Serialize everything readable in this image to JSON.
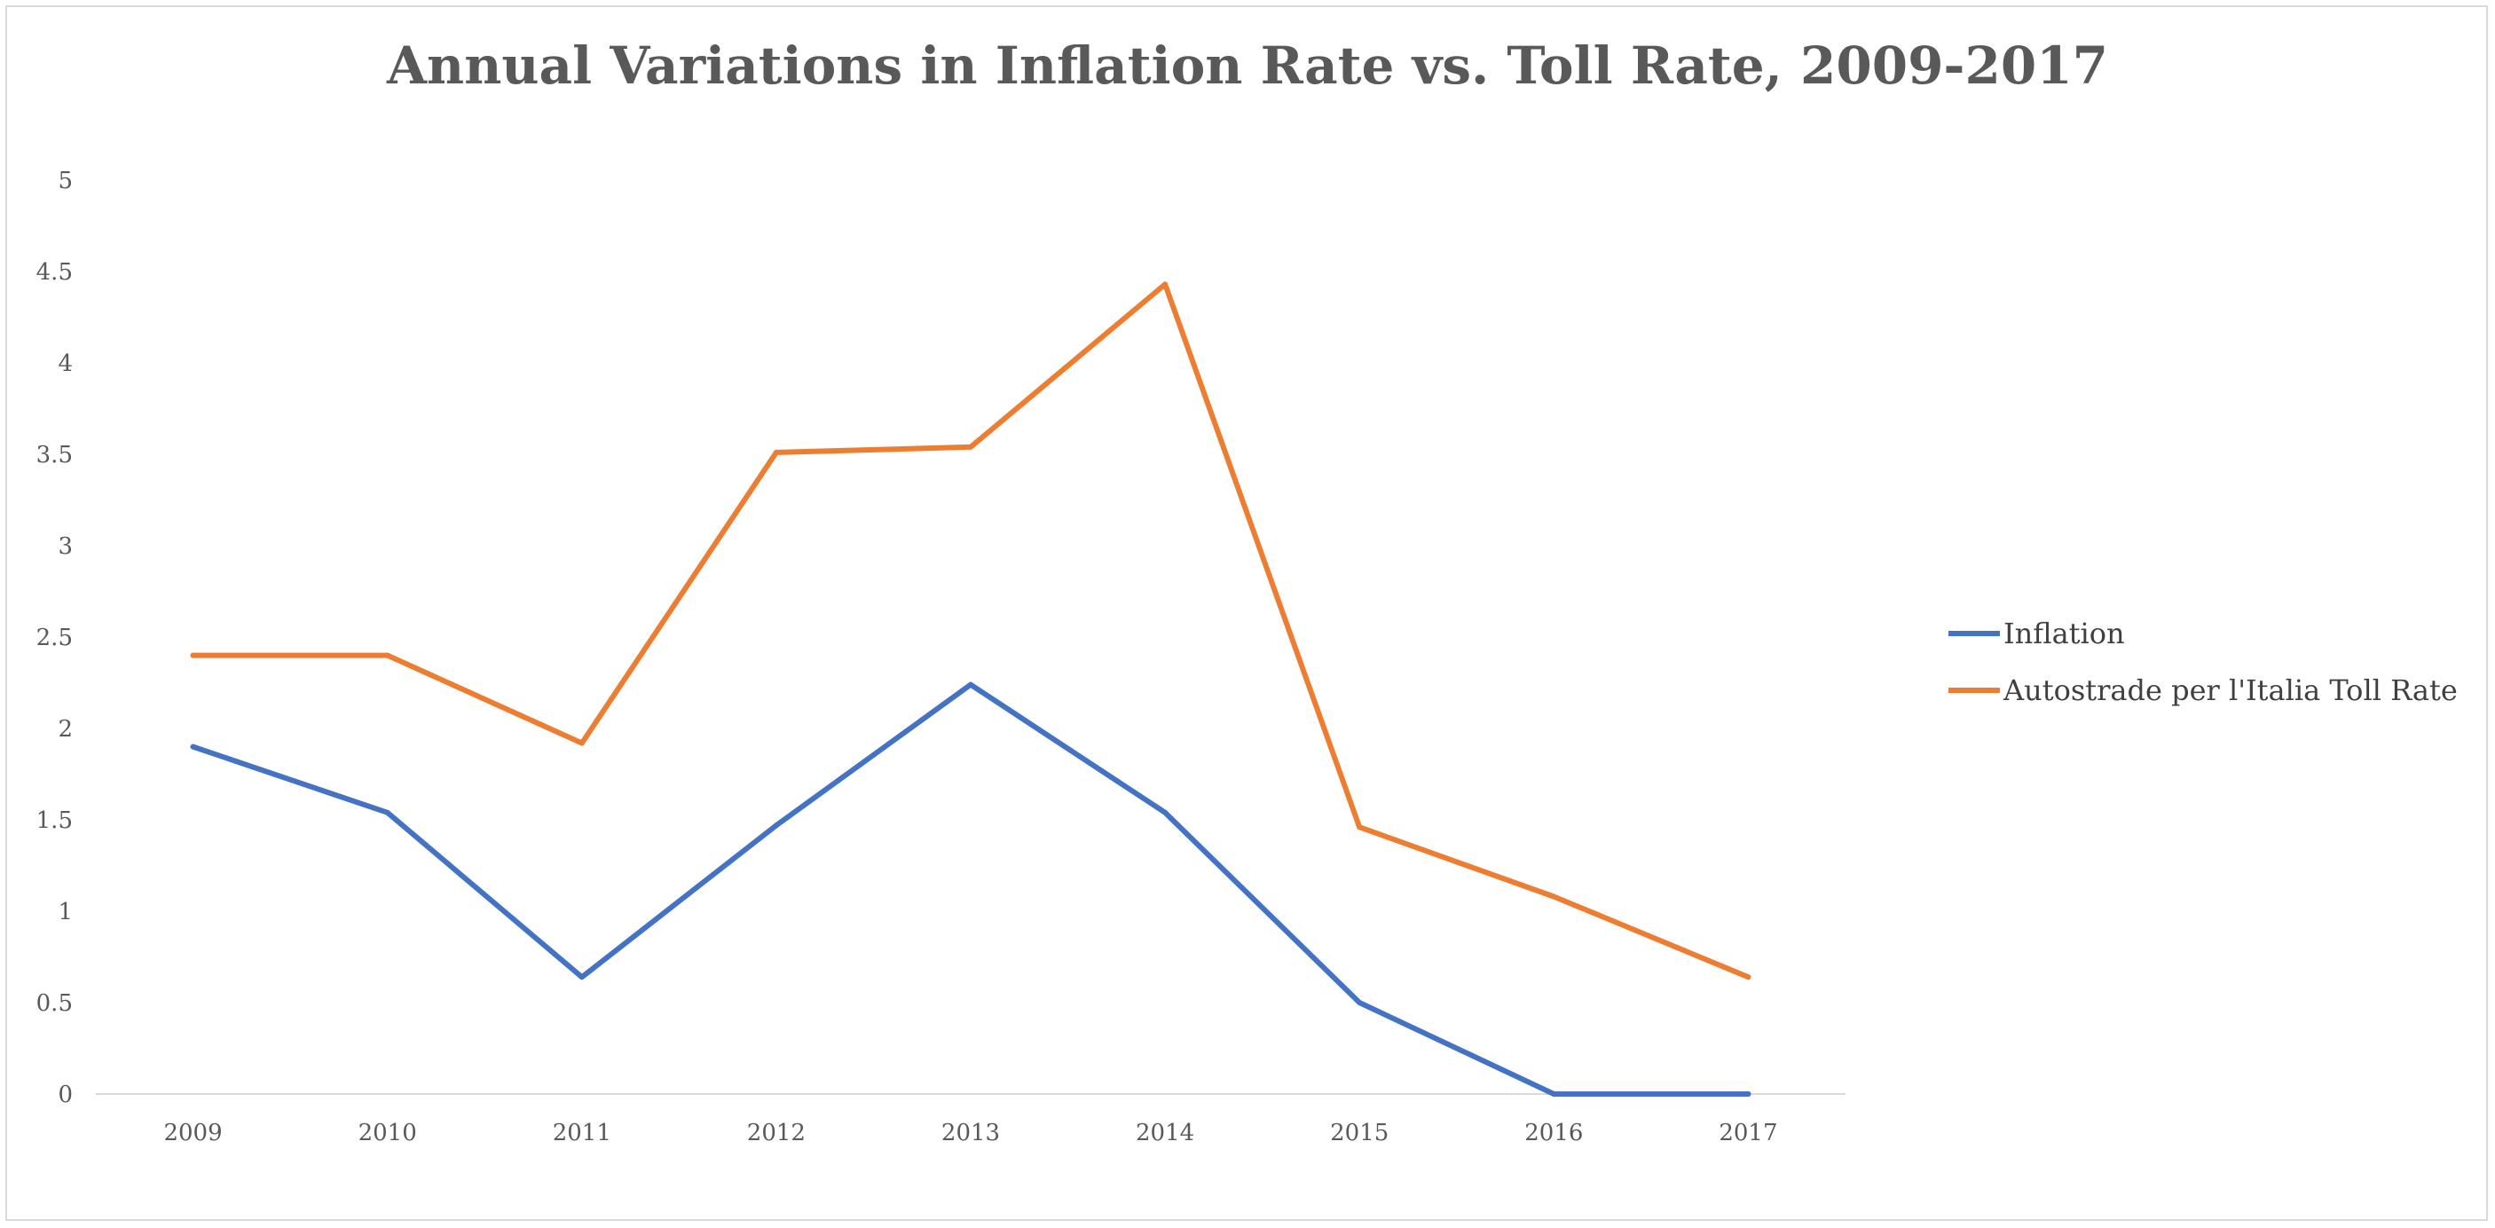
{
  "chart_data": {
    "type": "line",
    "title": "Annual Variations in Inflation Rate vs. Toll Rate, 2009-2017",
    "xlabel": "",
    "ylabel": "",
    "categories": [
      "2009",
      "2010",
      "2011",
      "2012",
      "2013",
      "2014",
      "2015",
      "2016",
      "2017"
    ],
    "y_ticks": [
      "0",
      "0.5",
      "1",
      "1.5",
      "2",
      "2.5",
      "3",
      "3.5",
      "4",
      "4.5",
      "5"
    ],
    "ylim": [
      0,
      5
    ],
    "grid": false,
    "legend_position": "right",
    "series": [
      {
        "name": "Inflation",
        "color": "#4472c4",
        "values": [
          1.9,
          1.54,
          0.64,
          1.47,
          2.24,
          1.54,
          0.5,
          0.0,
          0.0
        ]
      },
      {
        "name": "Autostrade per l'Italia Toll Rate",
        "color": "#ed7d31",
        "values": [
          2.4,
          2.4,
          1.92,
          3.51,
          3.54,
          4.43,
          1.46,
          1.08,
          0.64
        ]
      }
    ]
  }
}
